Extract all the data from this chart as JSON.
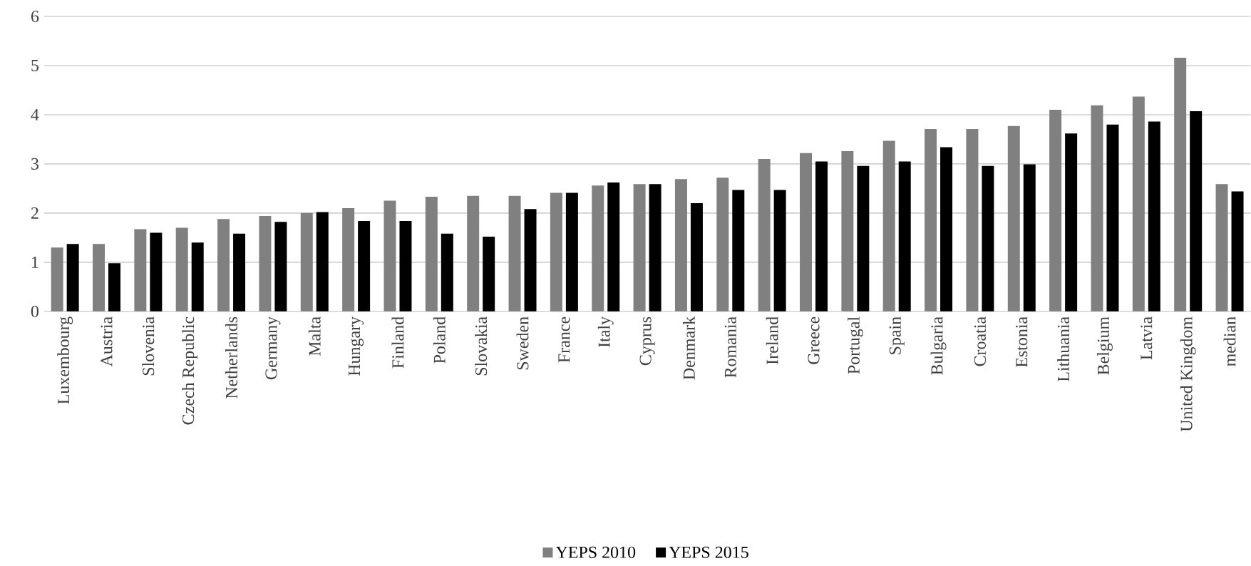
{
  "chart_data": {
    "type": "bar",
    "categories": [
      "Luxembourg",
      "Austria",
      "Slovenia",
      "Czech Republic",
      "Netherlands",
      "Germany",
      "Malta",
      "Hungary",
      "Finland",
      "Poland",
      "Slovakia",
      "Sweden",
      "France",
      "Italy",
      "Cyprus",
      "Denmark",
      "Romania",
      "Ireland",
      "Greece",
      "Portugal",
      "Spain",
      "Bulgaria",
      "Croatia",
      "Estonia",
      "Lithuania",
      "Belgium",
      "Latvia",
      "United Kingdom",
      "median"
    ],
    "series": [
      {
        "name": "YEPS 2010",
        "color": "#808080",
        "values": [
          1.3,
          1.37,
          1.67,
          1.7,
          1.88,
          1.94,
          2.0,
          2.1,
          2.25,
          2.33,
          2.35,
          2.35,
          2.41,
          2.56,
          2.59,
          2.69,
          2.72,
          3.1,
          3.22,
          3.26,
          3.47,
          3.71,
          3.71,
          3.77,
          4.1,
          4.19,
          4.37,
          5.16,
          2.59
        ]
      },
      {
        "name": "YEPS 2015",
        "color": "#000000",
        "values": [
          1.37,
          0.98,
          1.6,
          1.4,
          1.58,
          1.82,
          2.02,
          1.84,
          1.84,
          1.58,
          1.52,
          2.08,
          2.41,
          2.62,
          2.59,
          2.2,
          2.47,
          2.47,
          3.05,
          2.96,
          3.05,
          3.34,
          2.96,
          2.99,
          3.62,
          3.8,
          3.86,
          4.07,
          2.44
        ]
      }
    ],
    "ylim": [
      0,
      6
    ],
    "yticks": [
      0,
      1,
      2,
      3,
      4,
      5,
      6
    ],
    "grid": "y",
    "legend": "bottom"
  }
}
